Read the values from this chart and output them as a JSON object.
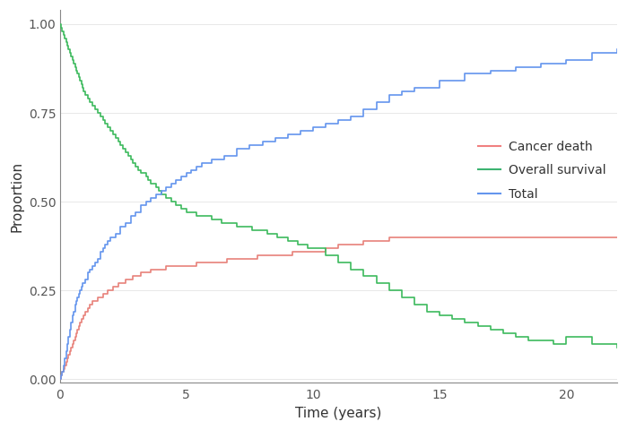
{
  "title": "",
  "xlabel": "Time (years)",
  "ylabel": "Proportion",
  "xlim": [
    0,
    22
  ],
  "ylim": [
    -0.01,
    1.04
  ],
  "yticks": [
    0.0,
    0.25,
    0.5,
    0.75,
    1.0
  ],
  "xticks": [
    0,
    5,
    10,
    15,
    20
  ],
  "background_color": "#ffffff",
  "grid_color": "#e8e8e8",
  "legend_labels": [
    "Cancer death",
    "Overall survival",
    "Total"
  ],
  "legend_colors": [
    "#f08080",
    "#3cb371",
    "#6495ed"
  ],
  "line_width": 1.2,
  "cancer_death": {
    "color": "#e8827a",
    "x": [
      0,
      0.05,
      0.1,
      0.15,
      0.2,
      0.25,
      0.3,
      0.35,
      0.4,
      0.45,
      0.5,
      0.55,
      0.6,
      0.65,
      0.7,
      0.75,
      0.8,
      0.85,
      0.9,
      0.95,
      1.0,
      1.1,
      1.2,
      1.3,
      1.4,
      1.5,
      1.6,
      1.7,
      1.8,
      1.9,
      2.0,
      2.1,
      2.2,
      2.3,
      2.4,
      2.5,
      2.6,
      2.7,
      2.8,
      2.9,
      3.0,
      3.1,
      3.2,
      3.3,
      3.4,
      3.5,
      3.6,
      3.7,
      3.8,
      3.9,
      4.0,
      4.2,
      4.4,
      4.6,
      4.8,
      5.0,
      5.2,
      5.4,
      5.6,
      5.8,
      6.0,
      6.2,
      6.4,
      6.6,
      6.8,
      7.0,
      7.2,
      7.4,
      7.6,
      7.8,
      8.0,
      8.2,
      8.4,
      8.6,
      8.8,
      9.0,
      9.2,
      9.4,
      9.6,
      9.8,
      10.0,
      10.5,
      11.0,
      11.5,
      12.0,
      12.5,
      13.0,
      13.5,
      14.0,
      15.0,
      16.0,
      17.0,
      18.0,
      19.0,
      20.0,
      21.0,
      22.0
    ],
    "y": [
      0.0,
      0.01,
      0.02,
      0.03,
      0.04,
      0.05,
      0.06,
      0.07,
      0.08,
      0.09,
      0.1,
      0.11,
      0.12,
      0.13,
      0.14,
      0.15,
      0.16,
      0.17,
      0.17,
      0.18,
      0.19,
      0.2,
      0.21,
      0.22,
      0.22,
      0.23,
      0.23,
      0.24,
      0.24,
      0.25,
      0.25,
      0.26,
      0.26,
      0.27,
      0.27,
      0.27,
      0.28,
      0.28,
      0.28,
      0.29,
      0.29,
      0.29,
      0.3,
      0.3,
      0.3,
      0.3,
      0.31,
      0.31,
      0.31,
      0.31,
      0.31,
      0.32,
      0.32,
      0.32,
      0.32,
      0.32,
      0.32,
      0.33,
      0.33,
      0.33,
      0.33,
      0.33,
      0.33,
      0.34,
      0.34,
      0.34,
      0.34,
      0.34,
      0.34,
      0.35,
      0.35,
      0.35,
      0.35,
      0.35,
      0.35,
      0.35,
      0.36,
      0.36,
      0.36,
      0.36,
      0.36,
      0.37,
      0.38,
      0.38,
      0.39,
      0.39,
      0.4,
      0.4,
      0.4,
      0.4,
      0.4,
      0.4,
      0.4,
      0.4,
      0.4,
      0.4,
      0.4
    ]
  },
  "overall_survival": {
    "color": "#3dba5e",
    "x": [
      0,
      0.05,
      0.1,
      0.15,
      0.2,
      0.25,
      0.3,
      0.35,
      0.4,
      0.45,
      0.5,
      0.55,
      0.6,
      0.65,
      0.7,
      0.75,
      0.8,
      0.85,
      0.9,
      0.95,
      1.0,
      1.1,
      1.2,
      1.3,
      1.4,
      1.5,
      1.6,
      1.7,
      1.8,
      1.9,
      2.0,
      2.1,
      2.2,
      2.3,
      2.4,
      2.5,
      2.6,
      2.7,
      2.8,
      2.9,
      3.0,
      3.1,
      3.2,
      3.3,
      3.4,
      3.5,
      3.6,
      3.7,
      3.8,
      3.9,
      4.0,
      4.2,
      4.4,
      4.6,
      4.8,
      5.0,
      5.2,
      5.4,
      5.6,
      5.8,
      6.0,
      6.2,
      6.4,
      6.6,
      6.8,
      7.0,
      7.2,
      7.4,
      7.6,
      7.8,
      8.0,
      8.2,
      8.4,
      8.6,
      8.8,
      9.0,
      9.2,
      9.4,
      9.6,
      9.8,
      10.0,
      10.5,
      11.0,
      11.5,
      12.0,
      12.5,
      13.0,
      13.5,
      14.0,
      14.5,
      15.0,
      15.5,
      16.0,
      16.5,
      17.0,
      17.5,
      18.0,
      18.5,
      19.0,
      19.5,
      20.0,
      21.0,
      22.0
    ],
    "y": [
      1.0,
      0.99,
      0.98,
      0.97,
      0.96,
      0.95,
      0.94,
      0.93,
      0.92,
      0.91,
      0.9,
      0.89,
      0.88,
      0.87,
      0.86,
      0.85,
      0.84,
      0.83,
      0.82,
      0.81,
      0.8,
      0.79,
      0.78,
      0.77,
      0.76,
      0.75,
      0.74,
      0.73,
      0.72,
      0.71,
      0.7,
      0.69,
      0.68,
      0.67,
      0.66,
      0.65,
      0.64,
      0.63,
      0.62,
      0.61,
      0.6,
      0.59,
      0.58,
      0.58,
      0.57,
      0.56,
      0.55,
      0.55,
      0.54,
      0.53,
      0.52,
      0.51,
      0.5,
      0.49,
      0.48,
      0.47,
      0.47,
      0.46,
      0.46,
      0.46,
      0.45,
      0.45,
      0.44,
      0.44,
      0.44,
      0.43,
      0.43,
      0.43,
      0.42,
      0.42,
      0.42,
      0.41,
      0.41,
      0.4,
      0.4,
      0.39,
      0.39,
      0.38,
      0.38,
      0.37,
      0.37,
      0.35,
      0.33,
      0.31,
      0.29,
      0.27,
      0.25,
      0.23,
      0.21,
      0.19,
      0.18,
      0.17,
      0.16,
      0.15,
      0.14,
      0.13,
      0.12,
      0.11,
      0.11,
      0.1,
      0.12,
      0.1,
      0.09
    ]
  },
  "total": {
    "color": "#6495ed",
    "x": [
      0,
      0.05,
      0.1,
      0.15,
      0.2,
      0.25,
      0.3,
      0.35,
      0.4,
      0.45,
      0.5,
      0.55,
      0.6,
      0.65,
      0.7,
      0.75,
      0.8,
      0.85,
      0.9,
      0.95,
      1.0,
      1.1,
      1.2,
      1.3,
      1.4,
      1.5,
      1.6,
      1.7,
      1.8,
      1.9,
      2.0,
      2.2,
      2.4,
      2.6,
      2.8,
      3.0,
      3.2,
      3.4,
      3.6,
      3.8,
      4.0,
      4.2,
      4.4,
      4.6,
      4.8,
      5.0,
      5.2,
      5.4,
      5.6,
      5.8,
      6.0,
      6.5,
      7.0,
      7.5,
      8.0,
      8.5,
      9.0,
      9.5,
      10.0,
      10.5,
      11.0,
      11.5,
      12.0,
      12.5,
      13.0,
      13.5,
      14.0,
      15.0,
      16.0,
      17.0,
      18.0,
      19.0,
      20.0,
      21.0,
      22.0
    ],
    "y": [
      0.0,
      0.01,
      0.02,
      0.04,
      0.06,
      0.08,
      0.1,
      0.12,
      0.14,
      0.16,
      0.18,
      0.19,
      0.21,
      0.22,
      0.23,
      0.24,
      0.25,
      0.26,
      0.27,
      0.27,
      0.28,
      0.3,
      0.31,
      0.32,
      0.33,
      0.34,
      0.36,
      0.37,
      0.38,
      0.39,
      0.4,
      0.41,
      0.43,
      0.44,
      0.46,
      0.47,
      0.49,
      0.5,
      0.51,
      0.52,
      0.53,
      0.54,
      0.55,
      0.56,
      0.57,
      0.58,
      0.59,
      0.6,
      0.61,
      0.61,
      0.62,
      0.63,
      0.65,
      0.66,
      0.67,
      0.68,
      0.69,
      0.7,
      0.71,
      0.72,
      0.73,
      0.74,
      0.76,
      0.78,
      0.8,
      0.81,
      0.82,
      0.84,
      0.86,
      0.87,
      0.88,
      0.89,
      0.9,
      0.92,
      0.93
    ]
  }
}
